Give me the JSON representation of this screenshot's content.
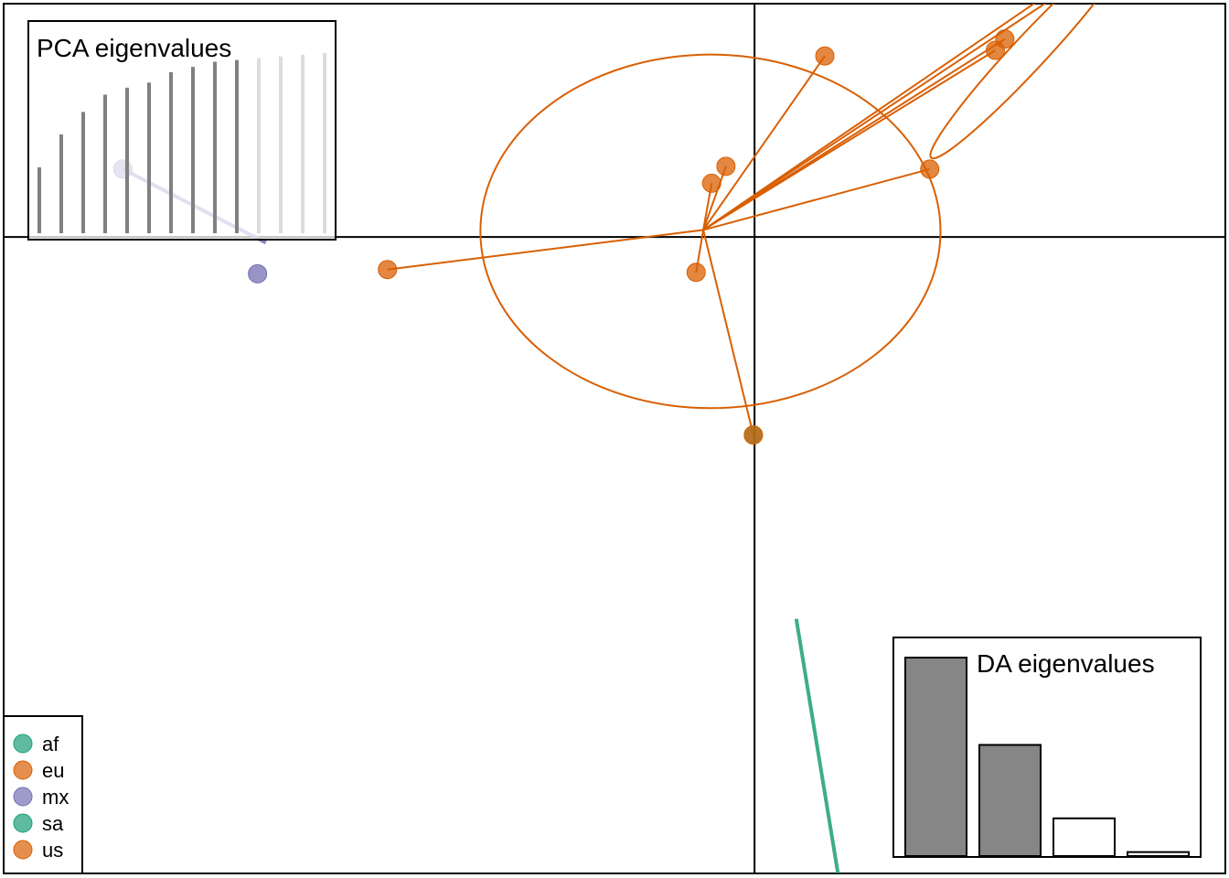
{
  "chart_data": {
    "type": "scatter",
    "title": "",
    "xlabel": "",
    "ylabel": "",
    "xlim": [
      -6.3,
      3.95
    ],
    "ylim": [
      -4.5,
      1.65
    ],
    "axes_cross": [
      0,
      0
    ],
    "groups": [
      {
        "name": "af",
        "color": "#1b9e77",
        "centroid": [
          -0.01,
          -1.4
        ],
        "points": [
          [
            -0.01,
            -1.4
          ]
        ],
        "ellipse": null,
        "segments_out": [
          [
            0.35,
            -2.7
          ],
          [
            0.7,
            -4.5
          ]
        ],
        "to_centroid": false
      },
      {
        "name": "eu",
        "color": "#d95f02",
        "centroid": [
          -0.01,
          -1.4
        ],
        "points": [],
        "ellipse": null,
        "segments_out": [],
        "to_centroid": false
      },
      {
        "name": "mx",
        "color": "#7570b3",
        "centroid": [
          -5.3,
          0.48
        ],
        "points": [
          [
            -5.3,
            0.48
          ],
          [
            -4.17,
            -0.26
          ]
        ],
        "ellipse": null,
        "segments_out": [
          [
            -5.3,
            0.48
          ],
          [
            -4.1,
            -0.04
          ]
        ],
        "to_centroid": false
      },
      {
        "name": "sa",
        "color": "#1b9e77",
        "centroid": [
          -0.01,
          -1.4
        ],
        "points": [],
        "ellipse": null,
        "segments_out": [],
        "to_centroid": false
      },
      {
        "name": "us",
        "color": "#d95f02",
        "centroid": [
          -0.43,
          0.05
        ],
        "points": [
          [
            -3.08,
            -0.23
          ],
          [
            -0.49,
            -0.25
          ],
          [
            -0.36,
            0.38
          ],
          [
            -0.24,
            0.5
          ],
          [
            0.59,
            1.28
          ],
          [
            1.47,
            0.48
          ],
          [
            2.5,
            1.74
          ],
          [
            2.56,
            1.72
          ],
          [
            2.1,
            1.4
          ],
          [
            2.02,
            1.32
          ],
          [
            -0.01,
            -1.4
          ]
        ],
        "ellipse": {
          "cx": -0.37,
          "cy": 0.04,
          "rx": 1.93,
          "ry": 1.25,
          "angle": 0
        },
        "ellipse2": {
          "cx": 2.3,
          "cy": 1.3,
          "rx": 1.2,
          "ry": 0.12,
          "angle": 47
        },
        "segments_out": [],
        "to_centroid": true
      }
    ],
    "legend": {
      "placement": "bottom-left",
      "entries": [
        {
          "label": "af",
          "color": "#1b9e77"
        },
        {
          "label": "eu",
          "color": "#d95f02"
        },
        {
          "label": "mx",
          "color": "#7570b3"
        },
        {
          "label": "sa",
          "color": "#1b9e77"
        },
        {
          "label": "us",
          "color": "#d95f02"
        }
      ]
    },
    "pca_eigen": {
      "title": "PCA eigenvalues",
      "values": [
        0.38,
        0.57,
        0.7,
        0.8,
        0.84,
        0.87,
        0.93,
        0.96,
        0.99,
        1.0,
        1.01,
        1.02,
        1.03,
        1.04
      ],
      "retained": 10,
      "color_retained": "#808080",
      "color_other": "#dcdcdc"
    },
    "da_eigen": {
      "title": "DA eigenvalues",
      "values": [
        1.0,
        0.56,
        0.19,
        0.02
      ],
      "retained": 2,
      "color_retained": "#808080",
      "color_other": "#ffffff"
    }
  }
}
